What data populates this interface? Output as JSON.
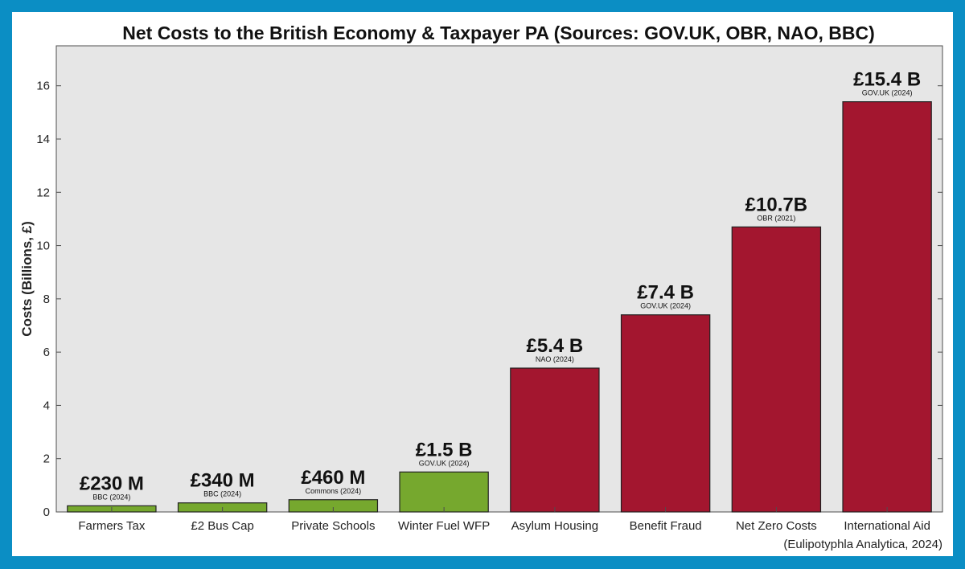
{
  "chart_data": {
    "type": "bar",
    "title": "Net Costs to the British Economy & Taxpayer PA (Sources: GOV.UK, OBR, NAO, BBC)",
    "xlabel": "",
    "ylabel": "Costs (Billions, £)",
    "ylim": [
      0,
      17.5
    ],
    "yticks": [
      0,
      2,
      4,
      6,
      8,
      10,
      12,
      14,
      16
    ],
    "grid": false,
    "categories": [
      "Farmers Tax",
      "£2 Bus Cap",
      "Private Schools",
      "Winter Fuel WFP",
      "Asylum Housing",
      "Benefit Fraud",
      "Net Zero Costs",
      "International Aid"
    ],
    "values": [
      0.23,
      0.34,
      0.46,
      1.5,
      5.4,
      7.4,
      10.7,
      15.4
    ],
    "value_labels": [
      "£230 M",
      "£340 M",
      "£460 M",
      "£1.5 B",
      "£5.4 B",
      "£7.4 B",
      "£10.7B",
      "£15.4 B"
    ],
    "source_labels": [
      "BBC (2024)",
      "BBC (2024)",
      "Commons (2024)",
      "GOV.UK (2024)",
      "NAO (2024)",
      "GOV.UK (2024)",
      "OBR (2021)",
      "GOV.UK (2024)"
    ],
    "groups": [
      "green",
      "green",
      "green",
      "green",
      "red",
      "red",
      "red",
      "red"
    ],
    "colors": {
      "green": "#76a82e",
      "red": "#a3162f",
      "plot_bg": "#e6e6e6",
      "axis": "#4d4d4d",
      "frame": "#0b8ec4"
    },
    "credit": "(Eulipotyphla Analytica, 2024)"
  }
}
